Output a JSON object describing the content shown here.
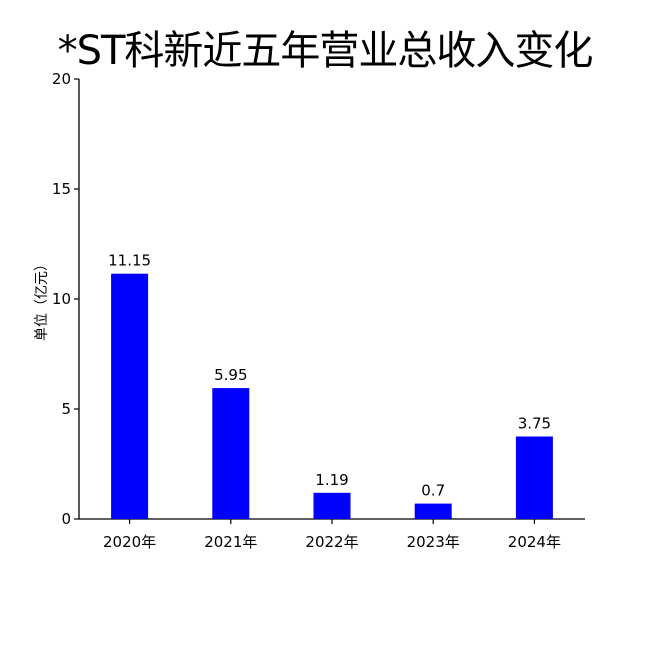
{
  "title": "*ST科新近五年营业总收入变化",
  "chart_data": {
    "type": "bar",
    "title": "*ST科新近五年营业总收入变化",
    "xlabel": "",
    "ylabel": "单位（亿元）",
    "categories": [
      "2020年",
      "2021年",
      "2022年",
      "2023年",
      "2024年"
    ],
    "values": [
      11.15,
      5.95,
      1.19,
      0.7,
      3.75
    ],
    "data_labels": [
      "11.15",
      "5.95",
      "1.19",
      "0.7",
      "3.75"
    ],
    "ylim": [
      0,
      20
    ],
    "yticks": [
      0,
      5,
      10,
      15,
      20
    ],
    "bar_color": "#0000FF",
    "grid": false,
    "legend": "none"
  }
}
